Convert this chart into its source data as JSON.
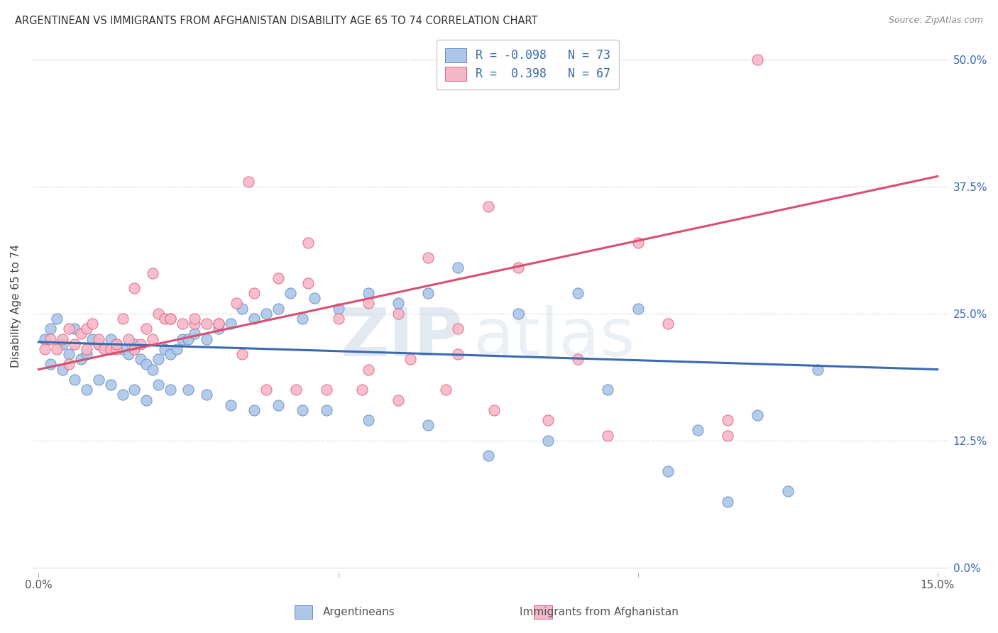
{
  "title": "ARGENTINEAN VS IMMIGRANTS FROM AFGHANISTAN DISABILITY AGE 65 TO 74 CORRELATION CHART",
  "source": "Source: ZipAtlas.com",
  "ylabel": "Disability Age 65 to 74",
  "xlabel_argentineans": "Argentineans",
  "xlabel_afghanistan": "Immigrants from Afghanistan",
  "xlim": [
    -0.001,
    0.152
  ],
  "ylim": [
    -0.005,
    0.52
  ],
  "yticks": [
    0.0,
    0.125,
    0.25,
    0.375,
    0.5
  ],
  "ytick_labels_right": [
    "0.0%",
    "12.5%",
    "25.0%",
    "37.5%",
    "50.0%"
  ],
  "xticks": [
    0.0,
    0.05,
    0.1,
    0.15
  ],
  "xtick_labels": [
    "0.0%",
    "",
    "",
    "15.0%"
  ],
  "legend_blue_R": "R = -0.098",
  "legend_blue_N": "N = 73",
  "legend_pink_R": "R =  0.398",
  "legend_pink_N": "N = 67",
  "color_blue_fill": "#aec6e8",
  "color_blue_edge": "#5b8ec9",
  "color_pink_fill": "#f5b8c8",
  "color_pink_edge": "#e0607a",
  "color_blue_line": "#3a6ab0",
  "color_pink_line": "#d94f6e",
  "color_legend_text": "#3a6ab0",
  "watermark_zip": "ZIP",
  "watermark_atlas": "atlas",
  "grid_color": "#d8dde8",
  "blue_points_x": [
    0.001,
    0.002,
    0.003,
    0.004,
    0.005,
    0.006,
    0.007,
    0.008,
    0.009,
    0.01,
    0.011,
    0.012,
    0.013,
    0.014,
    0.015,
    0.016,
    0.017,
    0.018,
    0.019,
    0.02,
    0.021,
    0.022,
    0.023,
    0.024,
    0.025,
    0.026,
    0.028,
    0.03,
    0.032,
    0.034,
    0.036,
    0.038,
    0.04,
    0.042,
    0.044,
    0.046,
    0.05,
    0.055,
    0.06,
    0.065,
    0.07,
    0.08,
    0.09,
    0.1,
    0.11,
    0.12,
    0.002,
    0.004,
    0.006,
    0.008,
    0.01,
    0.012,
    0.014,
    0.016,
    0.018,
    0.02,
    0.022,
    0.025,
    0.028,
    0.032,
    0.036,
    0.04,
    0.044,
    0.048,
    0.055,
    0.065,
    0.075,
    0.085,
    0.095,
    0.105,
    0.115,
    0.125,
    0.13
  ],
  "blue_points_y": [
    0.225,
    0.235,
    0.245,
    0.22,
    0.21,
    0.235,
    0.205,
    0.21,
    0.225,
    0.22,
    0.215,
    0.225,
    0.22,
    0.215,
    0.21,
    0.22,
    0.205,
    0.2,
    0.195,
    0.205,
    0.215,
    0.21,
    0.215,
    0.225,
    0.225,
    0.23,
    0.225,
    0.235,
    0.24,
    0.255,
    0.245,
    0.25,
    0.255,
    0.27,
    0.245,
    0.265,
    0.255,
    0.27,
    0.26,
    0.27,
    0.295,
    0.25,
    0.27,
    0.255,
    0.135,
    0.15,
    0.2,
    0.195,
    0.185,
    0.175,
    0.185,
    0.18,
    0.17,
    0.175,
    0.165,
    0.18,
    0.175,
    0.175,
    0.17,
    0.16,
    0.155,
    0.16,
    0.155,
    0.155,
    0.145,
    0.14,
    0.11,
    0.125,
    0.175,
    0.095,
    0.065,
    0.075,
    0.195
  ],
  "pink_points_x": [
    0.001,
    0.002,
    0.003,
    0.004,
    0.005,
    0.006,
    0.007,
    0.008,
    0.009,
    0.01,
    0.011,
    0.012,
    0.013,
    0.014,
    0.015,
    0.016,
    0.017,
    0.018,
    0.019,
    0.02,
    0.021,
    0.022,
    0.024,
    0.026,
    0.028,
    0.03,
    0.033,
    0.036,
    0.04,
    0.045,
    0.05,
    0.055,
    0.06,
    0.065,
    0.07,
    0.075,
    0.08,
    0.09,
    0.1,
    0.12,
    0.005,
    0.008,
    0.01,
    0.013,
    0.016,
    0.019,
    0.022,
    0.026,
    0.03,
    0.034,
    0.038,
    0.043,
    0.048,
    0.054,
    0.06,
    0.068,
    0.076,
    0.085,
    0.095,
    0.105,
    0.115,
    0.035,
    0.045,
    0.055,
    0.062,
    0.07,
    0.115
  ],
  "pink_points_y": [
    0.215,
    0.225,
    0.215,
    0.225,
    0.235,
    0.22,
    0.23,
    0.235,
    0.24,
    0.22,
    0.215,
    0.215,
    0.215,
    0.245,
    0.225,
    0.215,
    0.22,
    0.235,
    0.225,
    0.25,
    0.245,
    0.245,
    0.24,
    0.24,
    0.24,
    0.24,
    0.26,
    0.27,
    0.285,
    0.28,
    0.245,
    0.26,
    0.25,
    0.305,
    0.235,
    0.355,
    0.295,
    0.205,
    0.32,
    0.5,
    0.2,
    0.215,
    0.225,
    0.22,
    0.275,
    0.29,
    0.245,
    0.245,
    0.24,
    0.21,
    0.175,
    0.175,
    0.175,
    0.175,
    0.165,
    0.175,
    0.155,
    0.145,
    0.13,
    0.24,
    0.13,
    0.38,
    0.32,
    0.195,
    0.205,
    0.21,
    0.145
  ],
  "blue_line_x": [
    0.0,
    0.15
  ],
  "blue_line_y": [
    0.222,
    0.195
  ],
  "pink_line_x": [
    0.0,
    0.15
  ],
  "pink_line_y": [
    0.195,
    0.385
  ]
}
